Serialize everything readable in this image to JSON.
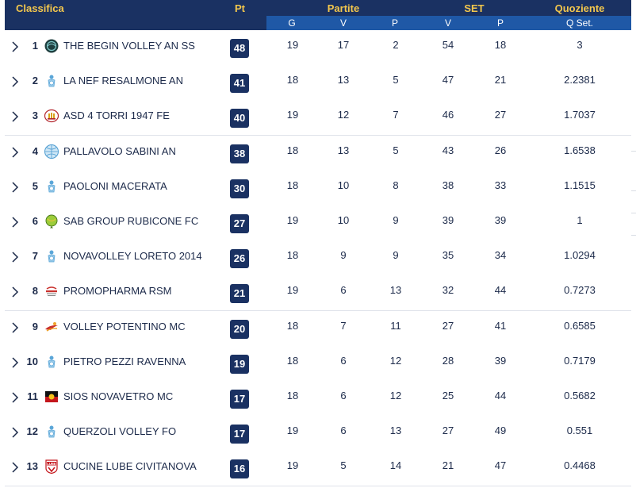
{
  "header": {
    "classifica": "Classifica",
    "pt": "Pt",
    "partite": "Partite",
    "set": "SET",
    "quoziente": "Quoziente",
    "sub": {
      "g": "G",
      "v": "V",
      "p": "P",
      "set_v": "V",
      "set_p": "P",
      "qset": "Q Set."
    }
  },
  "colors": {
    "header_dark": "#1a3162",
    "header_blue": "#1f58a6",
    "header_gold": "#f3c74d",
    "points_badge": "#1a3162"
  },
  "rows": [
    {
      "pos": "1",
      "logo": "volleyball-dark-icon",
      "team": "THE BEGIN VOLLEY AN SS",
      "pt": "48",
      "g": "19",
      "v": "17",
      "p": "2",
      "sv": "54",
      "sp": "18",
      "q": "3"
    },
    {
      "pos": "2",
      "logo": "volleyball-player-icon",
      "team": "LA NEF RESALMONE AN",
      "pt": "41",
      "g": "18",
      "v": "13",
      "p": "5",
      "sv": "47",
      "sp": "21",
      "q": "2.2381"
    },
    {
      "pos": "3",
      "logo": "towers-crest-icon",
      "team": "ASD 4 TORRI 1947 FE",
      "pt": "40",
      "g": "19",
      "v": "12",
      "p": "7",
      "sv": "46",
      "sp": "27",
      "q": "1.7037"
    },
    {
      "pos": "4",
      "logo": "globe-ball-icon",
      "team": "PALLAVOLO SABINI AN",
      "pt": "38",
      "g": "18",
      "v": "13",
      "p": "5",
      "sv": "43",
      "sp": "26",
      "q": "1.6538"
    },
    {
      "pos": "5",
      "logo": "volleyball-player-icon",
      "team": "PAOLONI MACERATA",
      "pt": "30",
      "g": "18",
      "v": "10",
      "p": "8",
      "sv": "38",
      "sp": "33",
      "q": "1.1515"
    },
    {
      "pos": "6",
      "logo": "green-ball-icon",
      "team": "SAB GROUP RUBICONE FC",
      "pt": "27",
      "g": "19",
      "v": "10",
      "p": "9",
      "sv": "39",
      "sp": "39",
      "q": "1"
    },
    {
      "pos": "7",
      "logo": "volleyball-player-icon",
      "team": "NOVAVOLLEY LORETO 2014",
      "pt": "26",
      "g": "18",
      "v": "9",
      "p": "9",
      "sv": "35",
      "sp": "34",
      "q": "1.0294"
    },
    {
      "pos": "8",
      "logo": "promopharma-icon",
      "team": "PROMOPHARMA RSM",
      "pt": "21",
      "g": "19",
      "v": "6",
      "p": "13",
      "sv": "32",
      "sp": "44",
      "q": "0.7273"
    },
    {
      "pos": "9",
      "logo": "potentino-icon",
      "team": "VOLLEY POTENTINO MC",
      "pt": "20",
      "g": "18",
      "v": "7",
      "p": "11",
      "sv": "27",
      "sp": "41",
      "q": "0.6585"
    },
    {
      "pos": "10",
      "logo": "volleyball-player-icon",
      "team": "PIETRO PEZZI RAVENNA",
      "pt": "19",
      "g": "18",
      "v": "6",
      "p": "12",
      "sv": "28",
      "sp": "39",
      "q": "0.7179"
    },
    {
      "pos": "11",
      "logo": "sios-flag-icon",
      "team": "SIOS NOVAVETRO MC",
      "pt": "17",
      "g": "18",
      "v": "6",
      "p": "12",
      "sv": "25",
      "sp": "44",
      "q": "0.5682"
    },
    {
      "pos": "12",
      "logo": "volleyball-player-icon",
      "team": "QUERZOLI VOLLEY FO",
      "pt": "17",
      "g": "19",
      "v": "6",
      "p": "13",
      "sv": "27",
      "sp": "49",
      "q": "0.551"
    },
    {
      "pos": "13",
      "logo": "lube-shield-icon",
      "team": "CUCINE LUBE CIVITANOVA",
      "pt": "16",
      "g": "19",
      "v": "5",
      "p": "14",
      "sv": "21",
      "sp": "47",
      "q": "0.4468"
    }
  ]
}
